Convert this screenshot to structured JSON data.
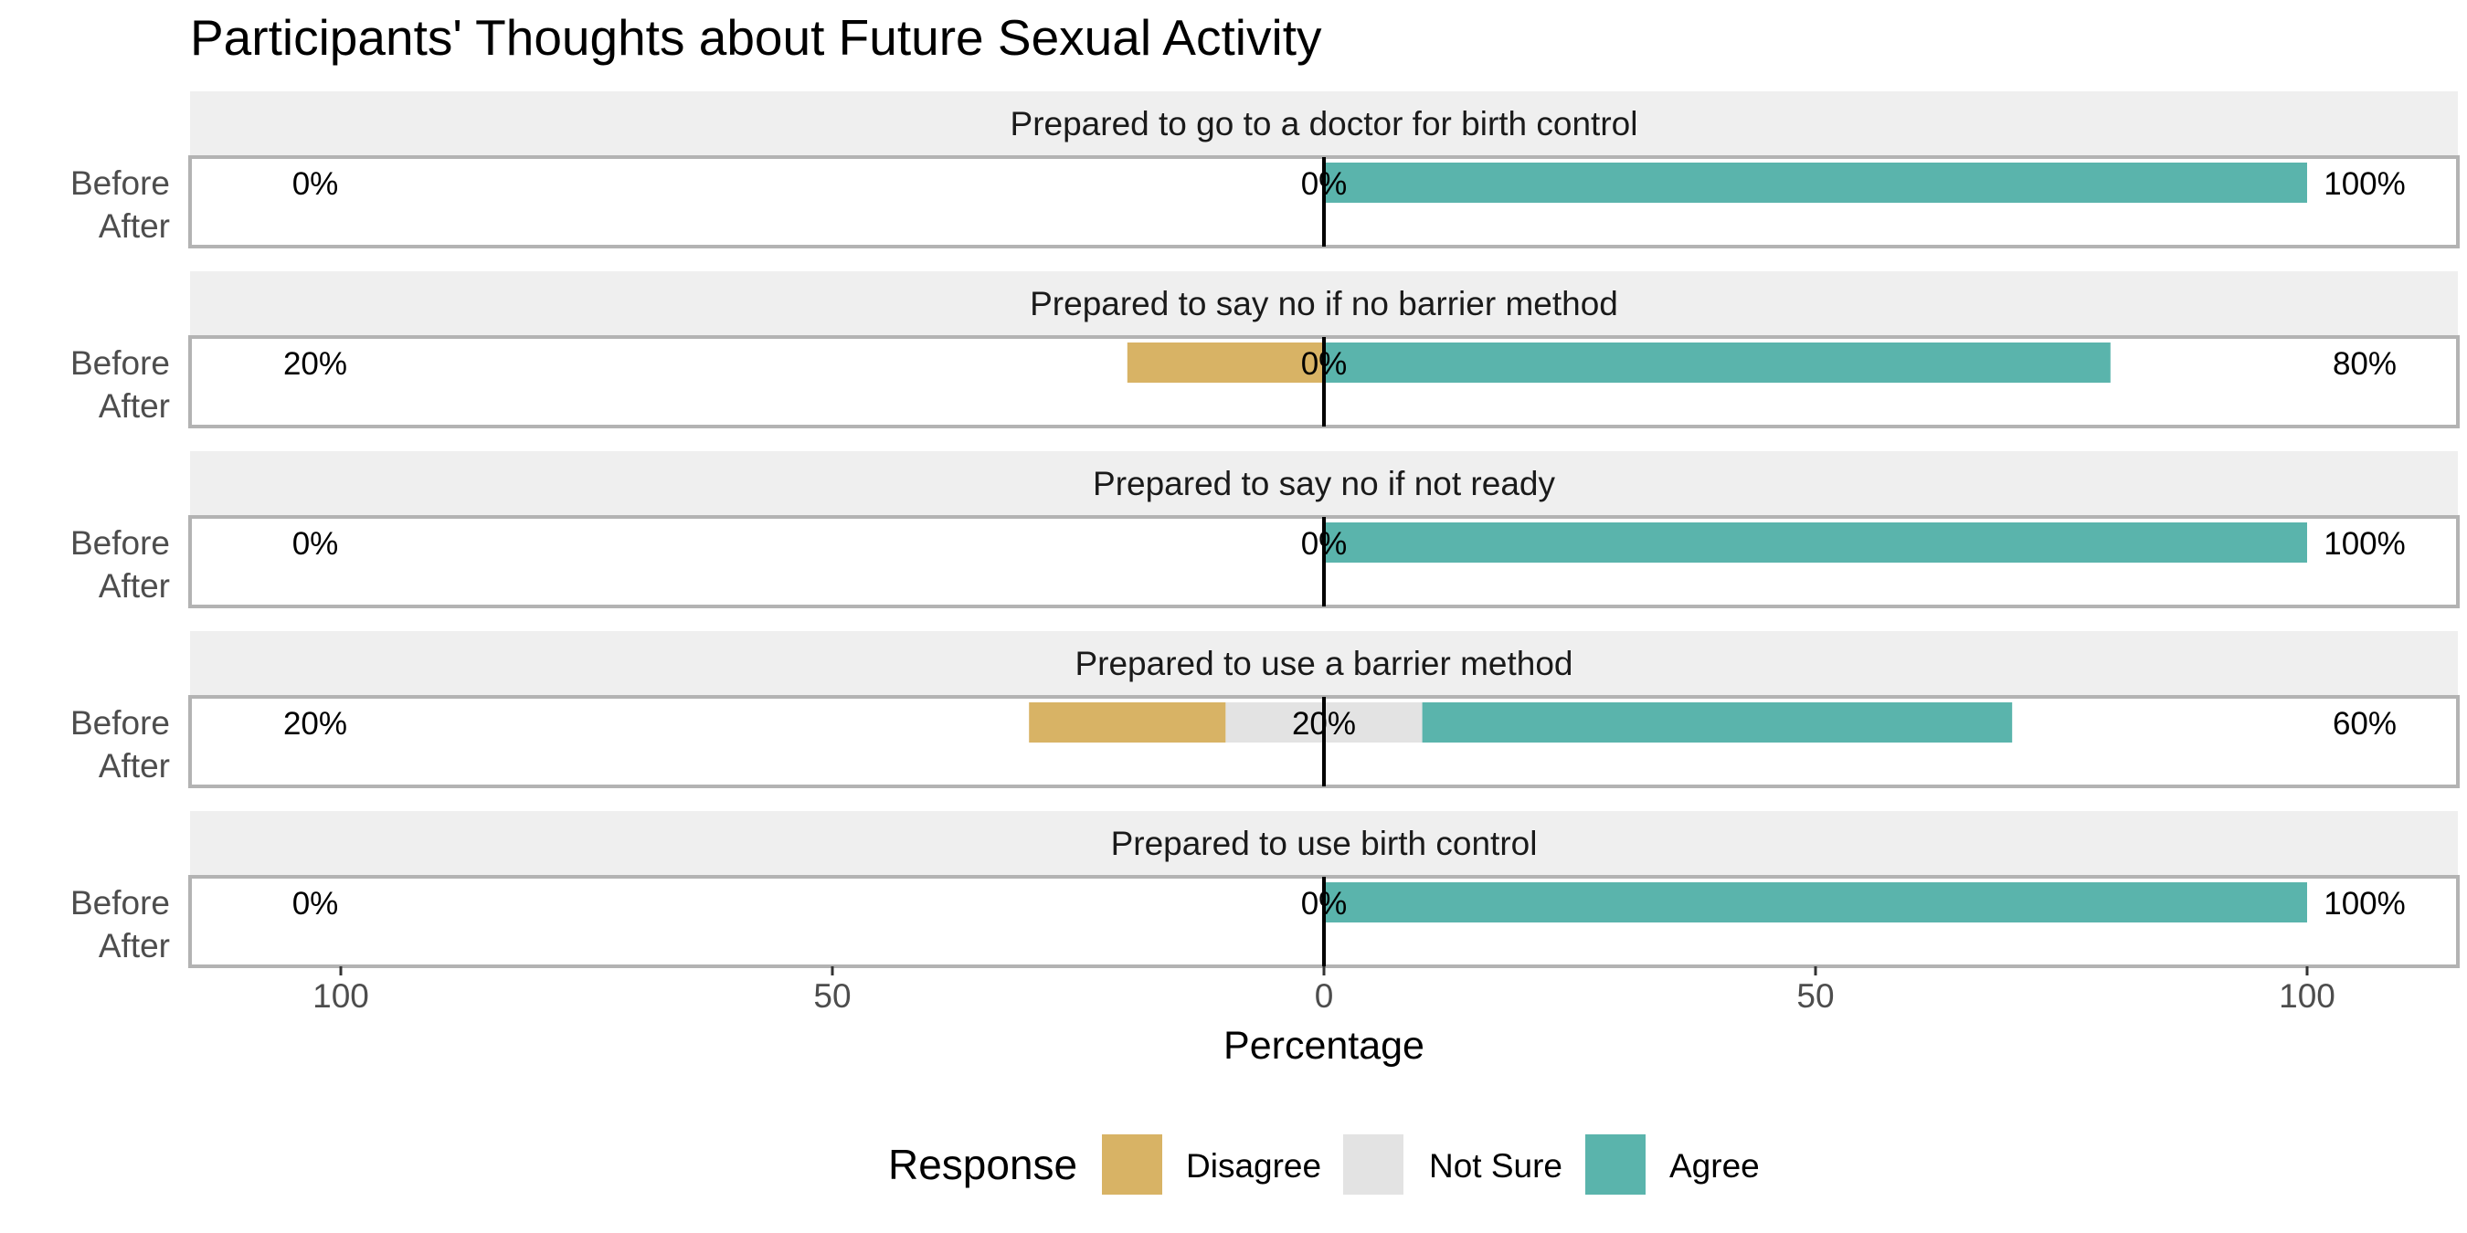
{
  "chart_data": {
    "type": "bar",
    "orientation": "horizontal",
    "layout": "diverging-stacked-facets",
    "title": "Participants' Thoughts about Future Sexual Activity",
    "xlabel": "Percentage",
    "xlim": [
      -100,
      100
    ],
    "x_ticks": [
      -100,
      -50,
      0,
      50,
      100
    ],
    "x_tick_labels": [
      "100",
      "50",
      "0",
      "50",
      "100"
    ],
    "grid": false,
    "legend": {
      "title": "Response",
      "position": "bottom",
      "items": [
        {
          "label": "Disagree",
          "color": "#D8B365"
        },
        {
          "label": "Not Sure",
          "color": "#E3E3E3"
        },
        {
          "label": "Agree",
          "color": "#5AB4AC"
        }
      ]
    },
    "row_labels": [
      "Before",
      "After"
    ],
    "facets": [
      {
        "label": "Prepared to go to a doctor for birth control",
        "rows": [
          {
            "label": "Before",
            "disagree": 0,
            "not_sure": 0,
            "agree": 100,
            "left_label": "0%",
            "center_label": "0%",
            "right_label": "100%"
          },
          {
            "label": "After",
            "disagree": 0,
            "not_sure": 0,
            "agree": 0
          }
        ]
      },
      {
        "label": "Prepared to say no if no barrier method",
        "rows": [
          {
            "label": "Before",
            "disagree": 20,
            "not_sure": 0,
            "agree": 80,
            "left_label": "20%",
            "center_label": "0%",
            "right_label": "80%"
          },
          {
            "label": "After",
            "disagree": 0,
            "not_sure": 0,
            "agree": 0
          }
        ]
      },
      {
        "label": "Prepared to say no if not ready",
        "rows": [
          {
            "label": "Before",
            "disagree": 0,
            "not_sure": 0,
            "agree": 100,
            "left_label": "0%",
            "center_label": "0%",
            "right_label": "100%"
          },
          {
            "label": "After",
            "disagree": 0,
            "not_sure": 0,
            "agree": 0
          }
        ]
      },
      {
        "label": "Prepared to use a barrier method",
        "rows": [
          {
            "label": "Before",
            "disagree": 20,
            "not_sure": 20,
            "agree": 60,
            "left_label": "20%",
            "center_label": "20%",
            "right_label": "60%"
          },
          {
            "label": "After",
            "disagree": 0,
            "not_sure": 0,
            "agree": 0
          }
        ]
      },
      {
        "label": "Prepared to use birth control",
        "rows": [
          {
            "label": "Before",
            "disagree": 0,
            "not_sure": 0,
            "agree": 100,
            "left_label": "0%",
            "center_label": "0%",
            "right_label": "100%"
          },
          {
            "label": "After",
            "disagree": 0,
            "not_sure": 0,
            "agree": 0
          }
        ]
      }
    ]
  }
}
